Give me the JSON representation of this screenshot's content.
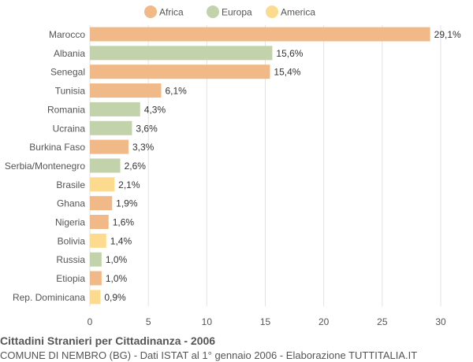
{
  "chart_data": {
    "type": "bar",
    "orientation": "horizontal",
    "legend": {
      "position": "top",
      "items": [
        {
          "name": "Africa",
          "color": "#f0b987"
        },
        {
          "name": "Europa",
          "color": "#c2d2ab"
        },
        {
          "name": "America",
          "color": "#fddb8e"
        }
      ]
    },
    "categories": [
      "Marocco",
      "Albania",
      "Senegal",
      "Tunisia",
      "Romania",
      "Ucraina",
      "Burkina Faso",
      "Serbia/Montenegro",
      "Brasile",
      "Ghana",
      "Nigeria",
      "Bolivia",
      "Russia",
      "Etiopia",
      "Rep. Dominicana"
    ],
    "values": [
      29.1,
      15.6,
      15.4,
      6.1,
      4.3,
      3.6,
      3.3,
      2.6,
      2.1,
      1.9,
      1.6,
      1.4,
      1.0,
      1.0,
      0.9
    ],
    "value_labels": [
      "29,1%",
      "15,6%",
      "15,4%",
      "6,1%",
      "4,3%",
      "3,6%",
      "3,3%",
      "2,6%",
      "2,1%",
      "1,9%",
      "1,6%",
      "1,4%",
      "1,0%",
      "1,0%",
      "0,9%"
    ],
    "groups": [
      "Africa",
      "Europa",
      "Africa",
      "Africa",
      "Europa",
      "Europa",
      "Africa",
      "Europa",
      "America",
      "Africa",
      "Africa",
      "America",
      "Europa",
      "Africa",
      "America"
    ],
    "xlim": [
      0,
      30
    ],
    "xticks": [
      0,
      5,
      10,
      15,
      20,
      25,
      30
    ],
    "grid": "vertical",
    "grid_color": "#e3e3e3"
  },
  "caption": {
    "title": "Cittadini Stranieri per Cittadinanza - 2006",
    "subtitle": "COMUNE DI NEMBRO (BG) - Dati ISTAT al 1° gennaio 2006 - Elaborazione TUTTITALIA.IT"
  }
}
